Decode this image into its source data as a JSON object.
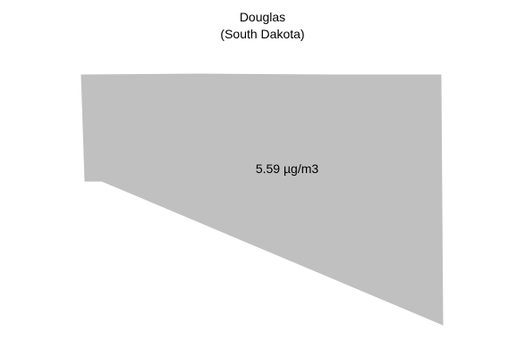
{
  "map": {
    "title": "Douglas",
    "subtitle": "(South Dakota)",
    "region": {
      "value_label": "5.59 µg/m3",
      "fill_color": "#c0c0c0"
    },
    "background_color": "#ffffff"
  }
}
